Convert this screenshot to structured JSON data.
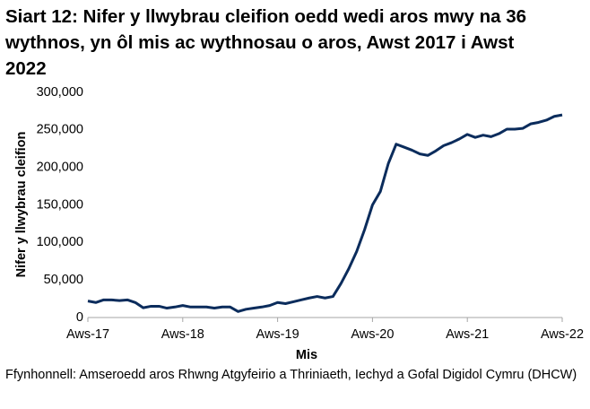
{
  "chart_data": {
    "type": "line",
    "title": "Siart 12: Nifer y llwybrau cleifion oedd wedi aros mwy na 36 wythnos, yn ôl mis ac wythnosau o aros, Awst 2017 i Awst 2022",
    "x_label": "Mis",
    "y_label": "Nifer y llwybrau cleifion",
    "source": "Ffynhonnell: Amseroedd aros Rhwng Atgyfeirio a Thriniaeth, Iechyd a Gofal Digidol Cymru (DHCW)",
    "categories": [
      "Aws-17",
      null,
      null,
      null,
      null,
      null,
      null,
      null,
      null,
      null,
      null,
      null,
      "Aws-18",
      null,
      null,
      null,
      null,
      null,
      null,
      null,
      null,
      null,
      null,
      null,
      "Aws-19",
      null,
      null,
      null,
      null,
      null,
      null,
      null,
      null,
      null,
      null,
      null,
      "Aws-20",
      null,
      null,
      null,
      null,
      null,
      null,
      null,
      null,
      null,
      null,
      null,
      "Aws-21",
      null,
      null,
      null,
      null,
      null,
      null,
      null,
      null,
      null,
      null,
      null,
      "Aws-22"
    ],
    "series": [
      {
        "color": "#0b2c5c",
        "values": [
          22000,
          20000,
          23500,
          23500,
          22500,
          23500,
          20000,
          13000,
          15000,
          15000,
          12500,
          14000,
          16000,
          14000,
          14000,
          14000,
          12500,
          14000,
          14000,
          8000,
          11000,
          12500,
          14000,
          16000,
          20000,
          18500,
          21000,
          23500,
          26000,
          28000,
          26000,
          28000,
          45000,
          65000,
          88000,
          117000,
          150000,
          168000,
          205000,
          231000,
          227000,
          223000,
          218000,
          216000,
          222000,
          229000,
          233000,
          238000,
          244000,
          240000,
          243000,
          241000,
          245000,
          251000,
          251000,
          252000,
          258000,
          260000,
          263000,
          268000,
          270000
        ]
      }
    ],
    "ylim": [
      0,
      300000
    ],
    "yticks": [
      0,
      {
        "value": 50000,
        "label": "50,000"
      },
      {
        "value": 100000,
        "label": "100,000"
      },
      {
        "value": 150000,
        "label": "150,000"
      },
      {
        "value": 200000,
        "label": "200,000"
      },
      {
        "value": 250000,
        "label": "250,000"
      },
      {
        "value": 300000,
        "label": "300,000"
      }
    ],
    "grid": false
  }
}
